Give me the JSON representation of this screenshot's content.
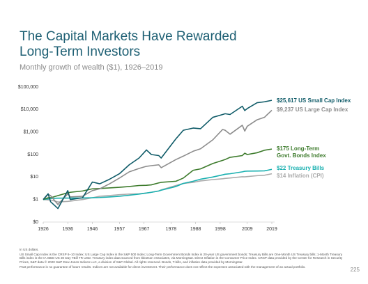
{
  "title_lines": [
    "The Capital Markets Have Rewarded",
    "Long-Term Investors"
  ],
  "subtitle": "Monthly growth of wealth ($1), 1926–2019",
  "chart_data": {
    "type": "line",
    "log_scale": true,
    "grid": false,
    "x": [
      1926,
      1928,
      1929,
      1932,
      1936,
      1937,
      1942,
      1946,
      1949,
      1953,
      1957,
      1961,
      1965,
      1968,
      1970,
      1973,
      1974,
      1980,
      1983,
      1987,
      1990,
      1995,
      1999,
      2000,
      2002,
      2007,
      2008,
      2009,
      2013,
      2016,
      2019
    ],
    "xlim": [
      1926,
      2019
    ],
    "xticks": [
      1926,
      1936,
      1946,
      1957,
      1967,
      1978,
      1988,
      1998,
      2009,
      2019
    ],
    "ylim": [
      0.1,
      100000
    ],
    "yticks": [
      {
        "value": 0.1,
        "label": "$0"
      },
      {
        "value": 1,
        "label": "$1"
      },
      {
        "value": 10,
        "label": "$10"
      },
      {
        "value": 100,
        "label": "$100"
      },
      {
        "value": 1000,
        "label": "$1,000"
      },
      {
        "value": 10000,
        "label": "$10,000"
      },
      {
        "value": 100000,
        "label": "$100,000"
      }
    ],
    "series": [
      {
        "name": "$25,617 US Small Cap Index",
        "color": "#0f5b68",
        "values": [
          1,
          1.8,
          0.8,
          0.4,
          2.5,
          1.0,
          1.2,
          6,
          5,
          8,
          14,
          35,
          70,
          160,
          100,
          90,
          70,
          500,
          1200,
          1500,
          1400,
          4500,
          6000,
          6500,
          6000,
          14000,
          9000,
          11000,
          20000,
          22000,
          25617
        ]
      },
      {
        "name": "$9,237 US Large Cap Index",
        "color": "#8c8c8c",
        "values": [
          1,
          1.7,
          1.5,
          0.6,
          1.8,
          1.3,
          1.4,
          2.5,
          3,
          5,
          9,
          17,
          24,
          30,
          32,
          35,
          26,
          60,
          85,
          140,
          180,
          450,
          1300,
          1200,
          800,
          2000,
          1100,
          1800,
          3500,
          4500,
          9237
        ]
      },
      {
        "name": "$175 Long-Term Govt. Bonds Index",
        "color": "#3d7b2c",
        "values": [
          1,
          1.2,
          1.2,
          1.5,
          2,
          2.1,
          2.4,
          3,
          3.1,
          3.3,
          3.5,
          3.8,
          4.2,
          4.3,
          4.5,
          5.5,
          5.8,
          6.5,
          9,
          20,
          23,
          40,
          55,
          60,
          75,
          90,
          115,
          100,
          120,
          155,
          175
        ]
      },
      {
        "name": "$22 Treasury Bills",
        "color": "#19b0b0",
        "values": [
          1,
          1.07,
          1.12,
          1.15,
          1.16,
          1.16,
          1.17,
          1.2,
          1.23,
          1.3,
          1.4,
          1.55,
          1.75,
          1.95,
          2.1,
          2.4,
          2.6,
          3.8,
          5.2,
          6.5,
          8,
          10,
          12.5,
          13.3,
          14,
          17,
          18,
          18.4,
          18.5,
          18.8,
          22
        ]
      },
      {
        "name": "$14 Inflation (CPI)",
        "color": "#ababab",
        "values": [
          1,
          0.96,
          0.96,
          0.78,
          0.83,
          0.85,
          1.0,
          1.2,
          1.4,
          1.5,
          1.65,
          1.75,
          1.8,
          1.95,
          2.1,
          2.4,
          2.7,
          4.2,
          5.2,
          5.8,
          6.7,
          7.7,
          8.4,
          8.7,
          9.1,
          10.3,
          10.2,
          10.5,
          11.5,
          12,
          14
        ]
      }
    ]
  },
  "footnotes": [
    "In US dollars.",
    "US Small Cap Index is the CRSP 6–10 Index; US Large Cap Index is the S&P 500 Index; Long-Term Government Bonds Index is 20-year US government bonds; Treasury Bills are One-Month US Treasury bills; 1-Month Treasury Bills index is the IA SBBI US 30 Day TBill TR USD. Treasury index data sourced from Ibbotson Associates, via Morningstar. Direct Inflation is the Consumer Price Index. CRSP data provided by the Center for Research in Security Prices, S&P data © 2020 S&P Dow Jones Indices LLC, a division of S&P Global. All rights reserved. Bonds, T-bills, and inflation data provided by Morningstar.",
    "Past performance is no guarantee of future results. Indices are not available for direct investment. Their performance does not reflect the expenses associated with the management of an actual portfolio."
  ],
  "page_number": "225"
}
